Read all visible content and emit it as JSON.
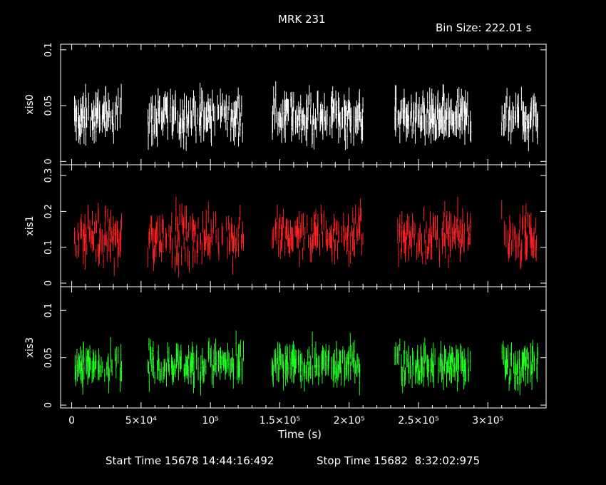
{
  "title": "MRK 231",
  "bin_size_label": "Bin Size: 222.01 s",
  "footer": {
    "start": "Start Time 15678 14:44:16:492",
    "stop": "Stop Time 15682  8:32:02:975"
  },
  "chart_data": {
    "type": "scatter",
    "title": "MRK 231",
    "xlabel": "Time (s)",
    "xlim": [
      -8000,
      342000
    ],
    "x_ticks": [
      {
        "value": 0,
        "label": "0"
      },
      {
        "value": 50000,
        "label": "5×10⁴"
      },
      {
        "value": 100000,
        "label": "10⁵"
      },
      {
        "value": 150000,
        "label": "1.5×10⁵"
      },
      {
        "value": 200000,
        "label": "2×10⁵"
      },
      {
        "value": 250000,
        "label": "2.5×10⁵"
      },
      {
        "value": 300000,
        "label": "3×10⁵"
      }
    ],
    "segments": [
      [
        2000,
        36000
      ],
      [
        55000,
        124000
      ],
      [
        144000,
        210000
      ],
      [
        233000,
        288000
      ],
      [
        310000,
        336000
      ]
    ],
    "panels": [
      {
        "name": "xis0",
        "ylabel": "xis0",
        "color": "#ffffff",
        "ylim": [
          -0.003,
          0.105
        ],
        "yticks": [
          {
            "value": 0.1,
            "label": "0.1"
          },
          {
            "value": 0.05,
            "label": "0.05"
          },
          {
            "value": 0,
            "label": "0"
          }
        ],
        "mean": 0.04,
        "spread": 0.012,
        "err": 0.01
      },
      {
        "name": "xis1",
        "ylabel": "xis1",
        "color": "#ff2020",
        "ylim": [
          -0.01,
          0.33
        ],
        "yticks": [
          {
            "value": 0.3,
            "label": "0.3"
          },
          {
            "value": 0.2,
            "label": "0.2"
          },
          {
            "value": 0.1,
            "label": "0.1"
          },
          {
            "value": 0,
            "label": "0"
          }
        ],
        "mean": 0.13,
        "spread": 0.045,
        "err": 0.025
      },
      {
        "name": "xis3",
        "ylabel": "xis3",
        "color": "#20ff20",
        "ylim": [
          -0.003,
          0.125
        ],
        "yticks": [
          {
            "value": 0.1,
            "label": "0.1"
          },
          {
            "value": 0.05,
            "label": "0.05"
          },
          {
            "value": 0,
            "label": "0"
          }
        ],
        "mean": 0.043,
        "spread": 0.012,
        "err": 0.01
      }
    ]
  }
}
